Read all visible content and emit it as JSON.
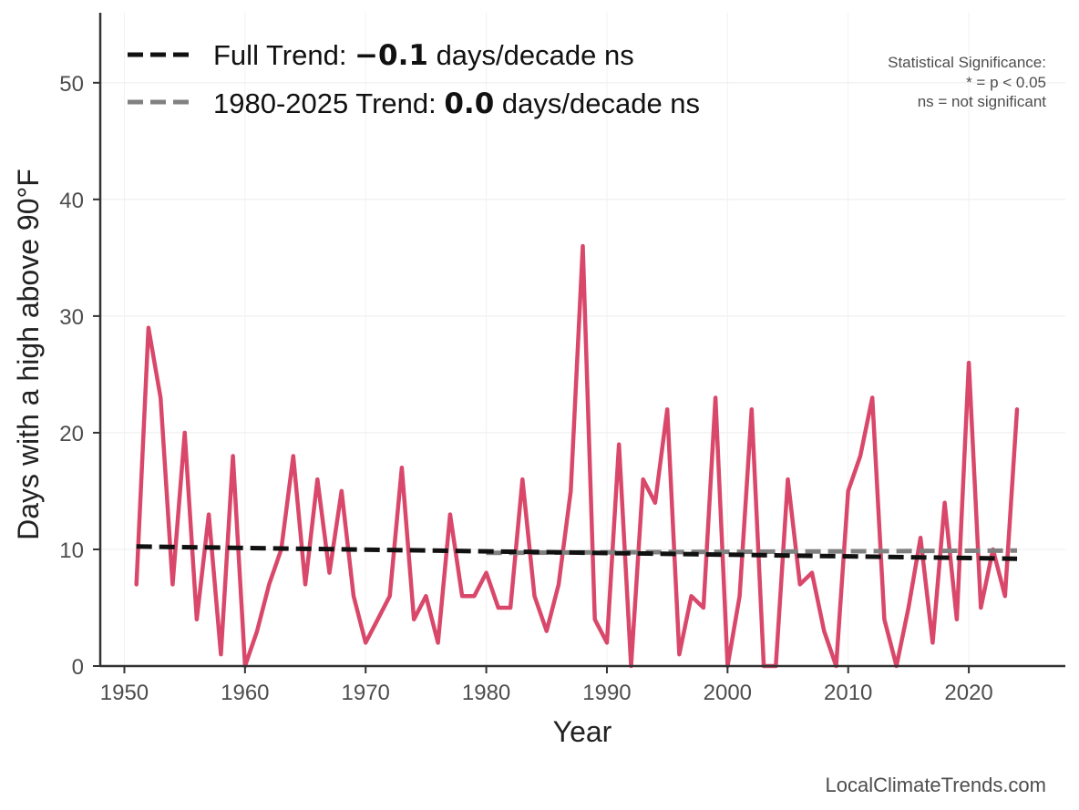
{
  "chart_data": {
    "type": "line",
    "xlabel": "Year",
    "ylabel": "Days with a high above 90°F",
    "xlim": [
      1948,
      2028
    ],
    "ylim": [
      0,
      56
    ],
    "x_ticks": [
      1950,
      1960,
      1970,
      1980,
      1990,
      2000,
      2010,
      2020
    ],
    "y_ticks": [
      0,
      10,
      20,
      30,
      40,
      50
    ],
    "grid": true,
    "legend_position": "top-left",
    "series": [
      {
        "color": "#d9486a",
        "x": [
          1951,
          1952,
          1953,
          1954,
          1955,
          1956,
          1957,
          1958,
          1959,
          1960,
          1961,
          1962,
          1963,
          1964,
          1965,
          1966,
          1967,
          1968,
          1969,
          1970,
          1971,
          1972,
          1973,
          1974,
          1975,
          1976,
          1977,
          1978,
          1979,
          1980,
          1981,
          1982,
          1983,
          1984,
          1985,
          1986,
          1987,
          1988,
          1989,
          1990,
          1991,
          1992,
          1993,
          1994,
          1995,
          1996,
          1997,
          1998,
          1999,
          2000,
          2001,
          2002,
          2003,
          2004,
          2005,
          2006,
          2007,
          2008,
          2009,
          2010,
          2011,
          2012,
          2013,
          2014,
          2015,
          2016,
          2017,
          2018,
          2019,
          2020,
          2021,
          2022,
          2023,
          2024
        ],
        "y": [
          7,
          29,
          23,
          7,
          20,
          4,
          13,
          1,
          18,
          0,
          3,
          7,
          10,
          18,
          7,
          16,
          8,
          15,
          6,
          2,
          4,
          6,
          17,
          4,
          6,
          2,
          13,
          6,
          6,
          8,
          5,
          5,
          16,
          6,
          3,
          7,
          15,
          36,
          4,
          2,
          19,
          0,
          16,
          14,
          22,
          1,
          6,
          5,
          23,
          0,
          6,
          22,
          0,
          0,
          16,
          7,
          8,
          3,
          0,
          15,
          18,
          23,
          4,
          0,
          5,
          11,
          2,
          14,
          4,
          26,
          5,
          10,
          6,
          22
        ]
      }
    ],
    "trends": [
      {
        "name": "Full Trend",
        "color": "#111111",
        "x": [
          1951,
          2024
        ],
        "y": [
          10.25,
          9.2
        ],
        "legend_prefix": "Full Trend: ",
        "legend_value": "−0.1",
        "legend_suffix": " days/decade ns"
      },
      {
        "name": "1980-2025 Trend",
        "color": "#808080",
        "x": [
          1980,
          2024
        ],
        "y": [
          9.7,
          9.9
        ],
        "legend_prefix": "1980-2025 Trend: ",
        "legend_value": "0.0",
        "legend_suffix": " days/decade ns"
      }
    ],
    "significance_note": [
      "Statistical Significance:",
      "* = p < 0.05",
      "ns = not significant"
    ],
    "source": "LocalClimateTrends.com"
  }
}
